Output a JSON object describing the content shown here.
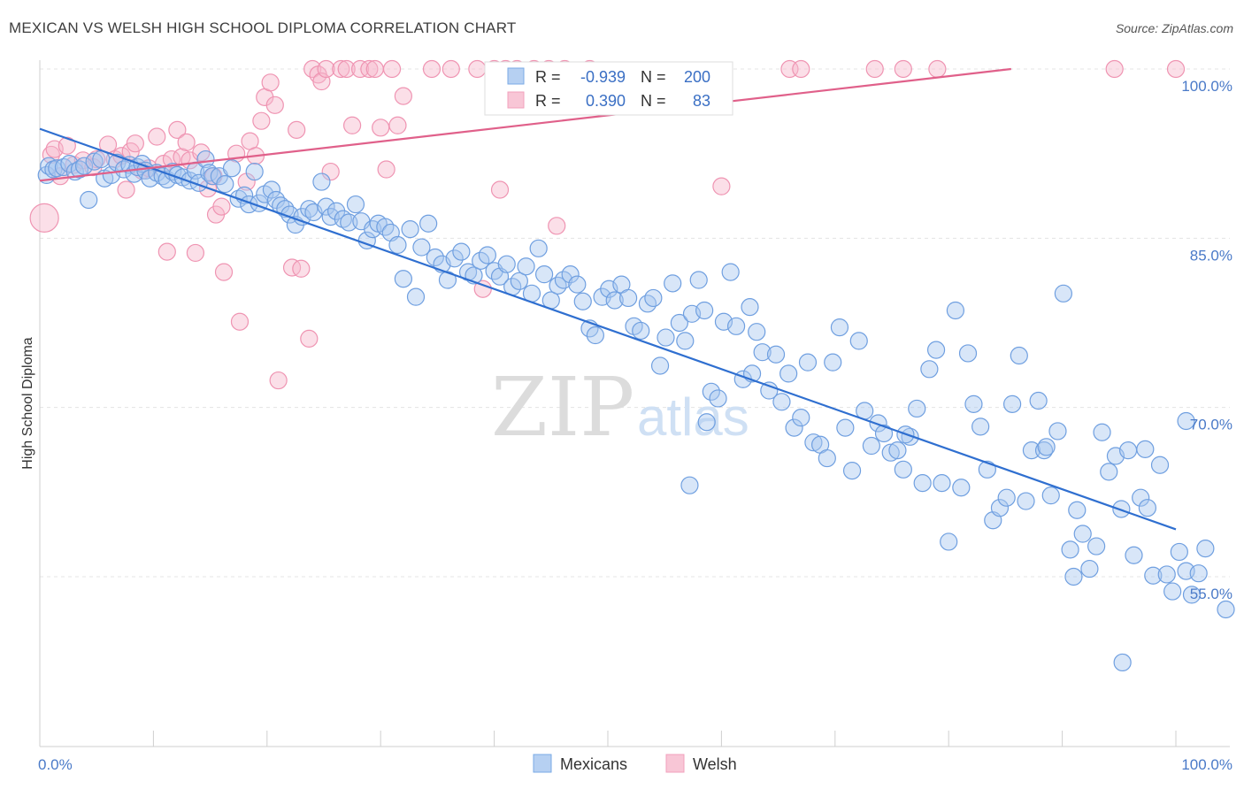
{
  "title": "MEXICAN VS WELSH HIGH SCHOOL DIPLOMA CORRELATION CHART",
  "source": "Source: ZipAtlas.com",
  "watermark": {
    "zip": "ZIP",
    "atlas": "atlas"
  },
  "legend": {
    "rows": [
      {
        "r_label": "R =",
        "r_value": "-0.939",
        "n_label": "N =",
        "n_value": "200"
      },
      {
        "r_label": "R =",
        "r_value": "0.390",
        "n_label": "N =",
        "n_value": "83"
      }
    ]
  },
  "chart_data": {
    "type": "scatter",
    "title": "MEXICAN VS WELSH HIGH SCHOOL DIPLOMA CORRELATION CHART",
    "xlabel": "",
    "ylabel": "High School Diploma",
    "xlim": [
      0,
      100
    ],
    "ylim": [
      40,
      101
    ],
    "x_tick_labels": [
      "0.0%",
      "100.0%"
    ],
    "y_ticks": [
      55,
      70,
      85,
      100
    ],
    "y_tick_labels": [
      "55.0%",
      "70.0%",
      "85.0%",
      "100.0%"
    ],
    "grid": true,
    "legend_position": "bottom-center",
    "series": [
      {
        "name": "Mexicans",
        "color": "#7aaae6",
        "line_color": "#2f6fd0",
        "r": -0.939,
        "n": 200,
        "trend": {
          "x": [
            0,
            100
          ],
          "y": [
            94.7,
            59.2
          ]
        },
        "points": [
          [
            0.6,
            90.6
          ],
          [
            0.8,
            91.4
          ],
          [
            1.2,
            91.1
          ],
          [
            1.5,
            91.2
          ],
          [
            2.1,
            91.3
          ],
          [
            2.6,
            91.6
          ],
          [
            3.1,
            90.9
          ],
          [
            3.5,
            91.1
          ],
          [
            3.9,
            91.4
          ],
          [
            4.3,
            88.4
          ],
          [
            4.8,
            91.8
          ],
          [
            5.4,
            92.0
          ],
          [
            5.7,
            90.3
          ],
          [
            6.3,
            90.6
          ],
          [
            6.8,
            91.7
          ],
          [
            7.4,
            91.1
          ],
          [
            7.9,
            91.5
          ],
          [
            8.3,
            90.7
          ],
          [
            8.6,
            91.3
          ],
          [
            9.0,
            91.6
          ],
          [
            9.3,
            91.0
          ],
          [
            9.7,
            90.3
          ],
          [
            10.3,
            90.8
          ],
          [
            10.8,
            90.5
          ],
          [
            11.2,
            90.2
          ],
          [
            11.7,
            90.9
          ],
          [
            12.1,
            90.6
          ],
          [
            12.6,
            90.4
          ],
          [
            13.2,
            90.1
          ],
          [
            13.7,
            91.0
          ],
          [
            14.0,
            89.9
          ],
          [
            14.6,
            92.0
          ],
          [
            14.9,
            90.8
          ],
          [
            15.2,
            90.5
          ],
          [
            15.8,
            90.5
          ],
          [
            16.3,
            89.8
          ],
          [
            16.9,
            91.2
          ],
          [
            17.5,
            88.5
          ],
          [
            18.0,
            88.8
          ],
          [
            18.4,
            88.0
          ],
          [
            18.9,
            90.9
          ],
          [
            19.3,
            88.1
          ],
          [
            19.8,
            88.9
          ],
          [
            20.4,
            89.3
          ],
          [
            20.8,
            88.4
          ],
          [
            21.2,
            87.9
          ],
          [
            21.6,
            87.6
          ],
          [
            22.0,
            87.1
          ],
          [
            22.5,
            86.2
          ],
          [
            23.1,
            86.9
          ],
          [
            23.7,
            87.6
          ],
          [
            24.1,
            87.3
          ],
          [
            24.8,
            90.0
          ],
          [
            25.2,
            87.8
          ],
          [
            25.6,
            86.9
          ],
          [
            26.1,
            87.4
          ],
          [
            26.7,
            86.7
          ],
          [
            27.2,
            86.4
          ],
          [
            27.8,
            88.0
          ],
          [
            28.3,
            86.5
          ],
          [
            28.8,
            84.8
          ],
          [
            29.3,
            85.8
          ],
          [
            29.8,
            86.3
          ],
          [
            30.4,
            86.0
          ],
          [
            30.9,
            85.5
          ],
          [
            31.5,
            84.4
          ],
          [
            32.0,
            81.4
          ],
          [
            32.6,
            85.8
          ],
          [
            33.1,
            79.8
          ],
          [
            33.6,
            84.2
          ],
          [
            34.2,
            86.3
          ],
          [
            34.8,
            83.3
          ],
          [
            35.4,
            82.7
          ],
          [
            35.9,
            81.3
          ],
          [
            36.5,
            83.2
          ],
          [
            37.1,
            83.8
          ],
          [
            37.7,
            82.0
          ],
          [
            38.2,
            81.7
          ],
          [
            38.8,
            83.0
          ],
          [
            39.4,
            83.5
          ],
          [
            40.0,
            82.1
          ],
          [
            40.5,
            81.6
          ],
          [
            41.1,
            82.7
          ],
          [
            41.6,
            80.7
          ],
          [
            42.2,
            81.2
          ],
          [
            42.8,
            82.5
          ],
          [
            43.3,
            80.1
          ],
          [
            43.9,
            84.1
          ],
          [
            44.4,
            81.8
          ],
          [
            45.0,
            79.5
          ],
          [
            45.6,
            80.8
          ],
          [
            46.1,
            81.3
          ],
          [
            46.7,
            81.8
          ],
          [
            47.3,
            80.9
          ],
          [
            47.8,
            79.4
          ],
          [
            48.4,
            77.0
          ],
          [
            48.9,
            76.4
          ],
          [
            49.5,
            79.8
          ],
          [
            50.1,
            80.5
          ],
          [
            50.6,
            79.5
          ],
          [
            51.2,
            80.9
          ],
          [
            51.8,
            79.7
          ],
          [
            52.3,
            77.2
          ],
          [
            52.9,
            76.8
          ],
          [
            53.5,
            79.2
          ],
          [
            54.0,
            79.7
          ],
          [
            54.6,
            73.7
          ],
          [
            55.1,
            76.2
          ],
          [
            55.7,
            81.0
          ],
          [
            56.3,
            77.5
          ],
          [
            56.8,
            75.9
          ],
          [
            57.4,
            78.3
          ],
          [
            58.0,
            81.3
          ],
          [
            58.5,
            78.6
          ],
          [
            59.1,
            71.4
          ],
          [
            59.7,
            70.8
          ],
          [
            60.2,
            77.6
          ],
          [
            60.8,
            82.0
          ],
          [
            61.3,
            77.2
          ],
          [
            61.9,
            72.5
          ],
          [
            62.5,
            78.9
          ],
          [
            63.1,
            76.7
          ],
          [
            63.6,
            74.9
          ],
          [
            64.2,
            71.5
          ],
          [
            64.8,
            74.7
          ],
          [
            65.3,
            70.5
          ],
          [
            65.9,
            73.0
          ],
          [
            66.4,
            68.2
          ],
          [
            67.0,
            69.1
          ],
          [
            67.6,
            74.0
          ],
          [
            68.1,
            66.9
          ],
          [
            68.7,
            66.7
          ],
          [
            69.3,
            65.5
          ],
          [
            69.8,
            74.0
          ],
          [
            70.4,
            77.1
          ],
          [
            70.9,
            68.2
          ],
          [
            71.5,
            64.4
          ],
          [
            72.1,
            75.9
          ],
          [
            72.6,
            69.7
          ],
          [
            73.2,
            66.6
          ],
          [
            73.8,
            68.6
          ],
          [
            74.3,
            67.7
          ],
          [
            74.9,
            66.0
          ],
          [
            75.5,
            66.2
          ],
          [
            76.0,
            64.5
          ],
          [
            76.6,
            67.4
          ],
          [
            77.2,
            69.9
          ],
          [
            77.7,
            63.3
          ],
          [
            78.3,
            73.4
          ],
          [
            78.9,
            75.1
          ],
          [
            79.4,
            63.3
          ],
          [
            80.0,
            58.1
          ],
          [
            80.6,
            78.6
          ],
          [
            81.1,
            62.9
          ],
          [
            81.7,
            74.8
          ],
          [
            82.2,
            70.3
          ],
          [
            82.8,
            68.3
          ],
          [
            83.4,
            64.5
          ],
          [
            83.9,
            60.0
          ],
          [
            84.5,
            61.1
          ],
          [
            85.1,
            62.0
          ],
          [
            85.6,
            70.3
          ],
          [
            86.2,
            74.6
          ],
          [
            86.8,
            61.7
          ],
          [
            87.3,
            66.2
          ],
          [
            87.9,
            70.6
          ],
          [
            88.4,
            66.2
          ],
          [
            89.0,
            62.2
          ],
          [
            89.6,
            67.9
          ],
          [
            90.1,
            80.1
          ],
          [
            90.7,
            57.4
          ],
          [
            91.3,
            60.9
          ],
          [
            91.8,
            58.8
          ],
          [
            92.4,
            55.7
          ],
          [
            93.0,
            57.7
          ],
          [
            93.5,
            67.8
          ],
          [
            94.1,
            64.3
          ],
          [
            94.7,
            65.7
          ],
          [
            95.2,
            61.0
          ],
          [
            95.8,
            66.2
          ],
          [
            96.3,
            56.9
          ],
          [
            96.9,
            62.0
          ],
          [
            97.5,
            61.1
          ],
          [
            98.0,
            55.1
          ],
          [
            98.6,
            64.9
          ],
          [
            99.2,
            55.2
          ],
          [
            99.7,
            53.7
          ],
          [
            100.3,
            57.2
          ],
          [
            100.9,
            55.5
          ],
          [
            101.4,
            53.4
          ],
          [
            102.0,
            55.3
          ],
          [
            102.6,
            57.5
          ],
          [
            95.3,
            47.4
          ],
          [
            97.3,
            66.3
          ],
          [
            91.0,
            55.0
          ],
          [
            88.6,
            66.5
          ],
          [
            76.2,
            67.6
          ],
          [
            58.7,
            68.7
          ],
          [
            57.2,
            63.1
          ],
          [
            62.7,
            73.0
          ],
          [
            100.9,
            68.8
          ],
          [
            104.4,
            52.1
          ]
        ]
      },
      {
        "name": "Welsh",
        "color": "#f2a0bc",
        "line_color": "#e0608a",
        "r": 0.39,
        "n": 83,
        "trend": {
          "x": [
            0,
            85.5
          ],
          "y": [
            90.1,
            100.0
          ]
        },
        "points": [
          [
            0.4,
            86.8
          ],
          [
            1.0,
            92.4
          ],
          [
            1.3,
            92.9
          ],
          [
            1.8,
            90.5
          ],
          [
            2.4,
            93.2
          ],
          [
            3.0,
            91.5
          ],
          [
            3.8,
            91.9
          ],
          [
            4.7,
            91.3
          ],
          [
            5.0,
            92.0
          ],
          [
            6.0,
            93.3
          ],
          [
            6.6,
            92.0
          ],
          [
            7.2,
            92.3
          ],
          [
            7.6,
            89.3
          ],
          [
            8.0,
            92.7
          ],
          [
            8.4,
            93.4
          ],
          [
            9.0,
            91.0
          ],
          [
            9.6,
            91.2
          ],
          [
            10.3,
            94.0
          ],
          [
            10.9,
            91.6
          ],
          [
            11.2,
            83.8
          ],
          [
            11.6,
            92.0
          ],
          [
            12.1,
            94.6
          ],
          [
            12.5,
            92.2
          ],
          [
            12.9,
            93.5
          ],
          [
            13.2,
            91.9
          ],
          [
            13.7,
            83.7
          ],
          [
            14.2,
            92.6
          ],
          [
            14.8,
            89.4
          ],
          [
            15.3,
            90.5
          ],
          [
            15.5,
            87.1
          ],
          [
            16.0,
            87.8
          ],
          [
            16.2,
            82.0
          ],
          [
            17.3,
            92.5
          ],
          [
            17.6,
            77.6
          ],
          [
            18.2,
            90.0
          ],
          [
            18.5,
            93.6
          ],
          [
            19.0,
            92.3
          ],
          [
            19.5,
            95.4
          ],
          [
            19.8,
            97.5
          ],
          [
            20.3,
            98.8
          ],
          [
            20.7,
            96.8
          ],
          [
            21.0,
            72.4
          ],
          [
            22.2,
            82.4
          ],
          [
            22.6,
            94.6
          ],
          [
            23.0,
            82.3
          ],
          [
            23.7,
            76.1
          ],
          [
            24.0,
            100.0
          ],
          [
            24.5,
            99.5
          ],
          [
            24.8,
            98.9
          ],
          [
            25.2,
            100.0
          ],
          [
            25.6,
            90.9
          ],
          [
            26.5,
            100.0
          ],
          [
            27.0,
            100.0
          ],
          [
            27.5,
            95.0
          ],
          [
            28.2,
            100.0
          ],
          [
            29.0,
            100.0
          ],
          [
            29.5,
            100.0
          ],
          [
            30.0,
            94.8
          ],
          [
            30.5,
            91.1
          ],
          [
            31.0,
            100.0
          ],
          [
            31.5,
            95.0
          ],
          [
            32.0,
            97.6
          ],
          [
            34.5,
            100.0
          ],
          [
            36.2,
            100.0
          ],
          [
            38.5,
            100.0
          ],
          [
            39.0,
            80.5
          ],
          [
            40.0,
            100.0
          ],
          [
            40.5,
            89.3
          ],
          [
            41.0,
            100.0
          ],
          [
            42.0,
            100.0
          ],
          [
            43.5,
            100.0
          ],
          [
            44.8,
            100.0
          ],
          [
            45.5,
            86.1
          ],
          [
            46.2,
            100.0
          ],
          [
            48.4,
            100.0
          ],
          [
            60.0,
            89.6
          ],
          [
            66.0,
            100.0
          ],
          [
            67.0,
            100.0
          ],
          [
            73.5,
            100.0
          ],
          [
            76.0,
            100.0
          ],
          [
            79.0,
            100.0
          ],
          [
            94.6,
            100.0
          ],
          [
            100.0,
            100.0
          ]
        ]
      }
    ]
  }
}
